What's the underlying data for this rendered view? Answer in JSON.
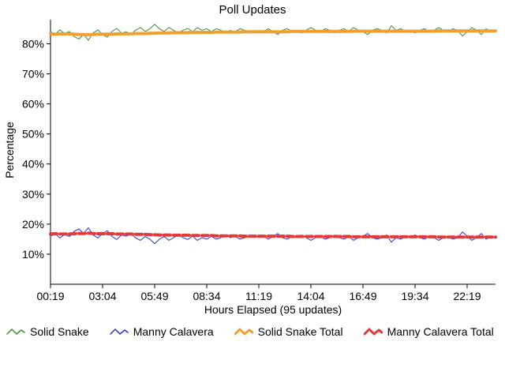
{
  "chart_data": {
    "type": "line",
    "title": "Poll Updates",
    "xlabel": "Hours Elapsed (95 updates)",
    "ylabel": "Percentage",
    "ylim": [
      0,
      88
    ],
    "y_ticks": [
      10,
      20,
      30,
      40,
      50,
      60,
      70,
      80
    ],
    "y_tick_suffix": "%",
    "x_tick_indices": [
      0,
      11,
      22,
      33,
      44,
      55,
      66,
      77,
      88
    ],
    "x_tick_labels": [
      "00:19",
      "03:04",
      "05:49",
      "08:34",
      "11:19",
      "14:04",
      "16:49",
      "19:34",
      "22:19"
    ],
    "grid": false,
    "legend_position": "bottom",
    "series": [
      {
        "name": "Solid Snake",
        "color": "#3f8f29",
        "width": 1,
        "dash": null,
        "values": [
          84.0,
          83.2,
          84.6,
          83.4,
          84.1,
          82.4,
          81.6,
          83.1,
          81.2,
          83.6,
          84.6,
          83.1,
          82.2,
          84.1,
          85.1,
          83.6,
          84.0,
          83.1,
          84.6,
          85.4,
          84.1,
          85.0,
          86.5,
          85.0,
          84.1,
          85.4,
          84.5,
          83.6,
          84.5,
          85.1,
          84.0,
          85.4,
          84.5,
          85.0,
          84.1,
          85.0,
          84.5,
          83.6,
          84.5,
          84.0,
          85.0,
          84.5,
          84.1,
          83.6,
          84.5,
          84.0,
          85.0,
          84.1,
          83.1,
          84.5,
          85.0,
          84.1,
          84.5,
          83.6,
          84.5,
          85.4,
          84.5,
          84.0,
          85.0,
          84.5,
          83.6,
          84.5,
          85.0,
          84.1,
          85.4,
          84.5,
          84.0,
          83.1,
          84.5,
          85.0,
          84.5,
          83.6,
          86.0,
          84.5,
          85.0,
          84.1,
          84.5,
          83.6,
          84.5,
          85.0,
          84.1,
          84.5,
          85.4,
          84.5,
          84.0,
          85.0,
          84.5,
          82.6,
          84.0,
          85.4,
          84.5,
          83.1,
          85.0,
          84.1,
          84.5
        ]
      },
      {
        "name": "Manny Calavera",
        "color": "#3232cd",
        "width": 1,
        "dash": null,
        "values": [
          16.0,
          16.8,
          15.4,
          16.6,
          15.9,
          17.6,
          18.4,
          16.9,
          18.8,
          16.4,
          15.4,
          16.9,
          17.8,
          15.9,
          14.9,
          16.4,
          16.0,
          16.9,
          15.4,
          14.6,
          15.9,
          15.0,
          13.5,
          15.0,
          15.9,
          14.6,
          15.5,
          16.4,
          15.5,
          14.9,
          16.0,
          14.6,
          15.5,
          15.0,
          15.9,
          15.0,
          15.5,
          16.4,
          15.5,
          16.0,
          15.0,
          15.5,
          15.9,
          16.4,
          15.5,
          16.0,
          15.0,
          15.9,
          16.9,
          15.5,
          15.0,
          15.9,
          15.5,
          16.4,
          15.5,
          14.6,
          15.5,
          16.0,
          15.0,
          15.5,
          16.4,
          15.5,
          15.0,
          15.9,
          14.6,
          15.5,
          16.0,
          16.9,
          15.5,
          15.0,
          15.5,
          16.4,
          14.0,
          15.5,
          15.0,
          15.9,
          15.5,
          16.4,
          15.5,
          15.0,
          15.9,
          15.5,
          14.6,
          15.5,
          16.0,
          15.0,
          15.5,
          17.4,
          16.0,
          14.6,
          15.5,
          16.9,
          15.0,
          15.9,
          15.5
        ]
      },
      {
        "name": "Solid Snake Total",
        "color": "#f0a030",
        "width": 4,
        "dash": null,
        "values": [
          83.3,
          83.2,
          83.3,
          83.3,
          83.3,
          83.2,
          83.1,
          83.1,
          83.0,
          83.1,
          83.2,
          83.2,
          83.2,
          83.2,
          83.3,
          83.3,
          83.3,
          83.3,
          83.4,
          83.4,
          83.4,
          83.5,
          83.5,
          83.6,
          83.6,
          83.6,
          83.7,
          83.7,
          83.7,
          83.7,
          83.8,
          83.8,
          83.8,
          83.8,
          83.8,
          83.9,
          83.9,
          83.9,
          83.9,
          83.9,
          83.9,
          84.0,
          84.0,
          84.0,
          84.0,
          84.0,
          84.0,
          84.0,
          84.0,
          84.0,
          84.0,
          84.1,
          84.1,
          84.1,
          84.1,
          84.1,
          84.1,
          84.1,
          84.1,
          84.1,
          84.1,
          84.1,
          84.1,
          84.1,
          84.2,
          84.2,
          84.2,
          84.2,
          84.2,
          84.2,
          84.2,
          84.2,
          84.2,
          84.2,
          84.2,
          84.2,
          84.2,
          84.2,
          84.2,
          84.2,
          84.2,
          84.2,
          84.3,
          84.3,
          84.3,
          84.3,
          84.3,
          84.3,
          84.3,
          84.3,
          84.3,
          84.3,
          84.3,
          84.3,
          84.3
        ]
      },
      {
        "name": "Manny Calavera Total",
        "color": "#e03a3a",
        "width": 4,
        "dash": "8 4",
        "values": [
          16.7,
          16.8,
          16.7,
          16.7,
          16.7,
          16.8,
          16.9,
          16.9,
          17.0,
          16.9,
          16.8,
          16.8,
          16.8,
          16.8,
          16.7,
          16.7,
          16.7,
          16.7,
          16.6,
          16.6,
          16.6,
          16.5,
          16.5,
          16.4,
          16.4,
          16.4,
          16.3,
          16.3,
          16.3,
          16.3,
          16.2,
          16.2,
          16.2,
          16.2,
          16.2,
          16.1,
          16.1,
          16.1,
          16.1,
          16.1,
          16.1,
          16.0,
          16.0,
          16.0,
          16.0,
          16.0,
          16.0,
          16.0,
          16.0,
          16.0,
          16.0,
          15.9,
          15.9,
          15.9,
          15.9,
          15.9,
          15.9,
          15.9,
          15.9,
          15.9,
          15.9,
          15.9,
          15.9,
          15.9,
          15.8,
          15.8,
          15.8,
          15.8,
          15.8,
          15.8,
          15.8,
          15.8,
          15.8,
          15.8,
          15.8,
          15.8,
          15.8,
          15.8,
          15.8,
          15.8,
          15.8,
          15.8,
          15.7,
          15.7,
          15.7,
          15.7,
          15.7,
          15.7,
          15.7,
          15.7,
          15.7,
          15.7,
          15.7,
          15.7,
          15.7
        ]
      }
    ]
  }
}
